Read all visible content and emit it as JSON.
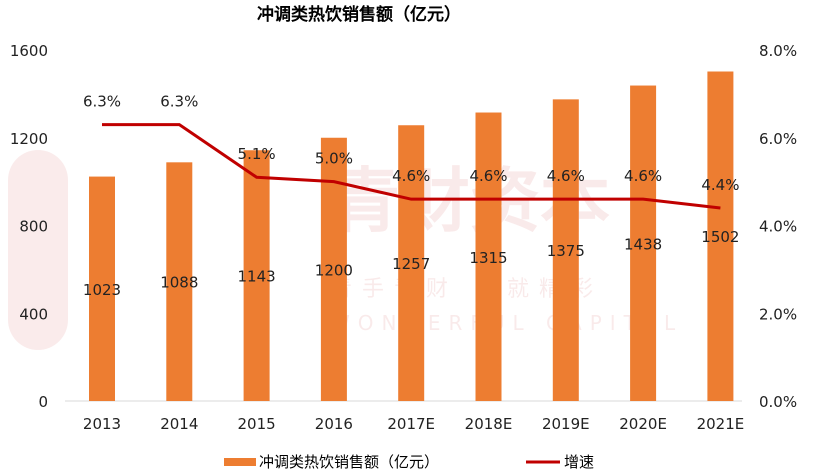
{
  "chart_data": {
    "type": "bar+line",
    "title": "冲调类热饮销售额（亿元）",
    "categories": [
      "2013",
      "2014",
      "2015",
      "2016",
      "2017E",
      "2018E",
      "2019E",
      "2020E",
      "2021E"
    ],
    "series": [
      {
        "name": "冲调类热饮销售额（亿元）",
        "type": "bar",
        "axis": "left",
        "color": "#ED7D31",
        "values": [
          1023,
          1088,
          1143,
          1200,
          1257,
          1315,
          1375,
          1438,
          1502
        ]
      },
      {
        "name": "增速",
        "type": "line",
        "axis": "right",
        "color": "#C00000",
        "values": [
          6.3,
          6.3,
          5.1,
          5.0,
          4.6,
          4.6,
          4.6,
          4.6,
          4.4
        ],
        "labels": [
          "6.3%",
          "6.3%",
          "5.1%",
          "5.0%",
          "4.6%",
          "4.6%",
          "4.6%",
          "4.6%",
          "4.4%"
        ]
      }
    ],
    "y_left": {
      "range": [
        0,
        1600
      ],
      "ticks": [
        "0",
        "400",
        "800",
        "1200",
        "1600"
      ]
    },
    "y_right": {
      "range": [
        0,
        8
      ],
      "ticks": [
        "0.0%",
        "2.0%",
        "4.0%",
        "6.0%",
        "8.0%"
      ]
    },
    "grid": false,
    "legend": "bottom",
    "watermark": [
      "青财资本",
      "青手青财 成就精彩",
      "WONDERFUL CAPITAL"
    ]
  }
}
